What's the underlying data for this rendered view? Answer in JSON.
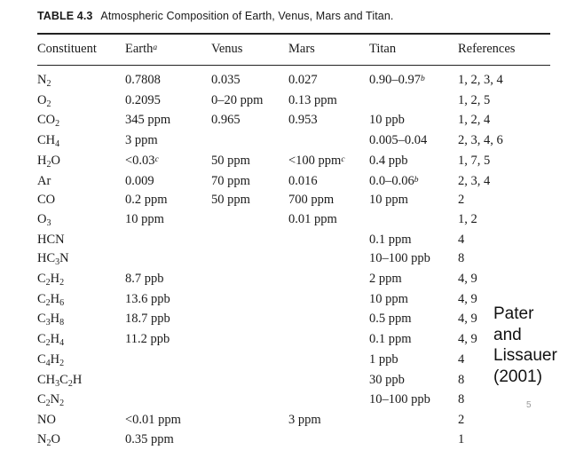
{
  "caption": {
    "number": "TABLE 4.3",
    "text": "Atmospheric Composition of Earth, Venus, Mars and Titan."
  },
  "columns": [
    {
      "base": "Constituent",
      "sup": ""
    },
    {
      "base": "Earth",
      "sup": "a"
    },
    {
      "base": "Venus",
      "sup": ""
    },
    {
      "base": "Mars",
      "sup": ""
    },
    {
      "base": "Titan",
      "sup": ""
    },
    {
      "base": "References",
      "sup": ""
    }
  ],
  "rows": [
    [
      [
        [
          "N",
          ""
        ],
        [
          "2",
          "sub"
        ]
      ],
      [
        [
          "0.7808",
          ""
        ]
      ],
      [
        [
          "0.035",
          ""
        ]
      ],
      [
        [
          "0.027",
          ""
        ]
      ],
      [
        [
          "0.90–0.97",
          ""
        ],
        [
          "b",
          "sup"
        ]
      ],
      [
        [
          "1, 2, 3, 4",
          ""
        ]
      ]
    ],
    [
      [
        [
          "O",
          ""
        ],
        [
          "2",
          "sub"
        ]
      ],
      [
        [
          "0.2095",
          ""
        ]
      ],
      [
        [
          "0–20 ppm",
          ""
        ]
      ],
      [
        [
          "0.13 ppm",
          ""
        ]
      ],
      [],
      [
        [
          "1, 2, 5",
          ""
        ]
      ]
    ],
    [
      [
        [
          "CO",
          ""
        ],
        [
          "2",
          "sub"
        ]
      ],
      [
        [
          "345 ppm",
          ""
        ]
      ],
      [
        [
          "0.965",
          ""
        ]
      ],
      [
        [
          "0.953",
          ""
        ]
      ],
      [
        [
          "10 ppb",
          ""
        ]
      ],
      [
        [
          "1, 2, 4",
          ""
        ]
      ]
    ],
    [
      [
        [
          "CH",
          ""
        ],
        [
          "4",
          "sub"
        ]
      ],
      [
        [
          "3 ppm",
          ""
        ]
      ],
      [],
      [],
      [
        [
          "0.005–0.04",
          ""
        ]
      ],
      [
        [
          "2, 3, 4, 6",
          ""
        ]
      ]
    ],
    [
      [
        [
          "H",
          ""
        ],
        [
          "2",
          "sub"
        ],
        [
          "O",
          ""
        ]
      ],
      [
        [
          "<0.03",
          ""
        ],
        [
          "c",
          "sup"
        ]
      ],
      [
        [
          "50 ppm",
          ""
        ]
      ],
      [
        [
          "<100 ppm",
          ""
        ],
        [
          "c",
          "sup"
        ]
      ],
      [
        [
          "0.4 ppb",
          ""
        ]
      ],
      [
        [
          "1, 7, 5",
          ""
        ]
      ]
    ],
    [
      [
        [
          "Ar",
          ""
        ]
      ],
      [
        [
          "0.009",
          ""
        ]
      ],
      [
        [
          "70 ppm",
          ""
        ]
      ],
      [
        [
          "0.016",
          ""
        ]
      ],
      [
        [
          "0.0–0.06",
          ""
        ],
        [
          "b",
          "sup"
        ]
      ],
      [
        [
          "2, 3, 4",
          ""
        ]
      ]
    ],
    [
      [
        [
          "CO",
          ""
        ]
      ],
      [
        [
          "0.2 ppm",
          ""
        ]
      ],
      [
        [
          "50 ppm",
          ""
        ]
      ],
      [
        [
          "700 ppm",
          ""
        ]
      ],
      [
        [
          "10 ppm",
          ""
        ]
      ],
      [
        [
          "2",
          ""
        ]
      ]
    ],
    [
      [
        [
          "O",
          ""
        ],
        [
          "3",
          "sub"
        ]
      ],
      [
        [
          "10 ppm",
          ""
        ]
      ],
      [],
      [
        [
          "0.01 ppm",
          ""
        ]
      ],
      [],
      [
        [
          "1, 2",
          ""
        ]
      ]
    ],
    [
      [
        [
          "HCN",
          ""
        ]
      ],
      [],
      [],
      [],
      [
        [
          "0.1 ppm",
          ""
        ]
      ],
      [
        [
          "4",
          ""
        ]
      ]
    ],
    [
      [
        [
          "HC",
          ""
        ],
        [
          "3",
          "sub"
        ],
        [
          "N",
          ""
        ]
      ],
      [],
      [],
      [],
      [
        [
          "10–100 ppb",
          ""
        ]
      ],
      [
        [
          "8",
          ""
        ]
      ]
    ],
    [
      [
        [
          "C",
          ""
        ],
        [
          "2",
          "sub"
        ],
        [
          "H",
          ""
        ],
        [
          "2",
          "sub"
        ]
      ],
      [
        [
          "8.7 ppb",
          ""
        ]
      ],
      [],
      [],
      [
        [
          "2 ppm",
          ""
        ]
      ],
      [
        [
          "4, 9",
          ""
        ]
      ]
    ],
    [
      [
        [
          "C",
          ""
        ],
        [
          "2",
          "sub"
        ],
        [
          "H",
          ""
        ],
        [
          "6",
          "sub"
        ]
      ],
      [
        [
          "13.6 ppb",
          ""
        ]
      ],
      [],
      [],
      [
        [
          "10 ppm",
          ""
        ]
      ],
      [
        [
          "4, 9",
          ""
        ]
      ]
    ],
    [
      [
        [
          "C",
          ""
        ],
        [
          "3",
          "sub"
        ],
        [
          "H",
          ""
        ],
        [
          "8",
          "sub"
        ]
      ],
      [
        [
          "18.7 ppb",
          ""
        ]
      ],
      [],
      [],
      [
        [
          "0.5 ppm",
          ""
        ]
      ],
      [
        [
          "4, 9",
          ""
        ]
      ]
    ],
    [
      [
        [
          "C",
          ""
        ],
        [
          "2",
          "sub"
        ],
        [
          "H",
          ""
        ],
        [
          "4",
          "sub"
        ]
      ],
      [
        [
          "11.2 ppb",
          ""
        ]
      ],
      [],
      [],
      [
        [
          "0.1 ppm",
          ""
        ]
      ],
      [
        [
          "4, 9",
          ""
        ]
      ]
    ],
    [
      [
        [
          "C",
          ""
        ],
        [
          "4",
          "sub"
        ],
        [
          "H",
          ""
        ],
        [
          "2",
          "sub"
        ]
      ],
      [],
      [],
      [],
      [
        [
          "1 ppb",
          ""
        ]
      ],
      [
        [
          "4",
          ""
        ]
      ]
    ],
    [
      [
        [
          "CH",
          ""
        ],
        [
          "3",
          "sub"
        ],
        [
          "C",
          ""
        ],
        [
          "2",
          "sub"
        ],
        [
          "H",
          ""
        ]
      ],
      [],
      [],
      [],
      [
        [
          "30 ppb",
          ""
        ]
      ],
      [
        [
          "8",
          ""
        ]
      ]
    ],
    [
      [
        [
          "C",
          ""
        ],
        [
          "2",
          "sub"
        ],
        [
          "N",
          ""
        ],
        [
          "2",
          "sub"
        ]
      ],
      [],
      [],
      [],
      [
        [
          "10–100 ppb",
          ""
        ]
      ],
      [
        [
          "8",
          ""
        ]
      ]
    ],
    [
      [
        [
          "NO",
          ""
        ]
      ],
      [
        [
          "<0.01 ppm",
          ""
        ]
      ],
      [],
      [
        [
          "3 ppm",
          ""
        ]
      ],
      [],
      [
        [
          "2",
          ""
        ]
      ]
    ],
    [
      [
        [
          "N",
          ""
        ],
        [
          "2",
          "sub"
        ],
        [
          "O",
          ""
        ]
      ],
      [
        [
          "0.35 ppm",
          ""
        ]
      ],
      [],
      [],
      [],
      [
        [
          "1",
          ""
        ]
      ]
    ]
  ],
  "credit": [
    "Pater",
    "and",
    "Lissauer",
    "(2001)"
  ],
  "slide_number": "5"
}
